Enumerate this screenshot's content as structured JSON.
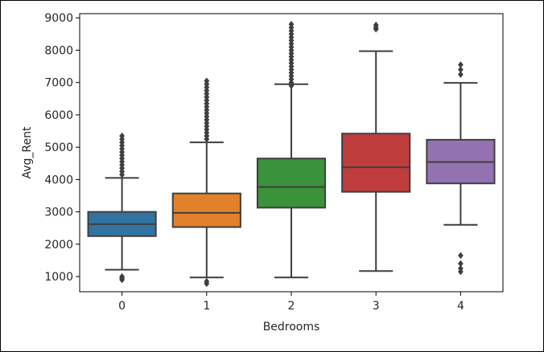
{
  "chart_data": {
    "type": "box",
    "title": "",
    "xlabel": "Bedrooms",
    "ylabel": "Avg_Rent",
    "categories": [
      "0",
      "1",
      "2",
      "3",
      "4"
    ],
    "ylim": [
      530,
      9130
    ],
    "yticks": [
      1000,
      2000,
      3000,
      4000,
      5000,
      6000,
      7000,
      8000,
      9000
    ],
    "grid": false,
    "colors": [
      "#3274a1",
      "#e1812c",
      "#3a923a",
      "#c03d3e",
      "#9372b2"
    ],
    "boxes": [
      {
        "category": "0",
        "whisker_low": 1210,
        "q1": 2250,
        "median": 2620,
        "q3": 3000,
        "whisker_high": 4050,
        "outliers": [
          900,
          950,
          1000,
          4150,
          4250,
          4350,
          4450,
          4550,
          4650,
          4750,
          4850,
          4950,
          5050,
          5150,
          5250,
          5350
        ]
      },
      {
        "category": "1",
        "whisker_low": 970,
        "q1": 2530,
        "median": 2970,
        "q3": 3570,
        "whisker_high": 5150,
        "outliers": [
          780,
          850,
          5250,
          5350,
          5450,
          5550,
          5650,
          5750,
          5850,
          5950,
          6050,
          6150,
          6250,
          6350,
          6450,
          6550,
          6650,
          6750,
          6850,
          6950,
          7050
        ]
      },
      {
        "category": "2",
        "whisker_low": 970,
        "q1": 3130,
        "median": 3770,
        "q3": 4650,
        "whisker_high": 6950,
        "outliers": [
          6900,
          7000,
          7100,
          7200,
          7300,
          7400,
          7500,
          7600,
          7700,
          7800,
          7900,
          8000,
          8100,
          8200,
          8300,
          8400,
          8500,
          8600,
          8700,
          8800
        ]
      },
      {
        "category": "3",
        "whisker_low": 1170,
        "q1": 3620,
        "median": 4380,
        "q3": 5420,
        "whisker_high": 7970,
        "outliers": [
          8650,
          8700,
          8780
        ]
      },
      {
        "category": "4",
        "whisker_low": 2600,
        "q1": 3880,
        "median": 4540,
        "q3": 5230,
        "whisker_high": 6990,
        "outliers": [
          1150,
          1250,
          1400,
          1650,
          7250,
          7400,
          7550
        ]
      }
    ]
  }
}
